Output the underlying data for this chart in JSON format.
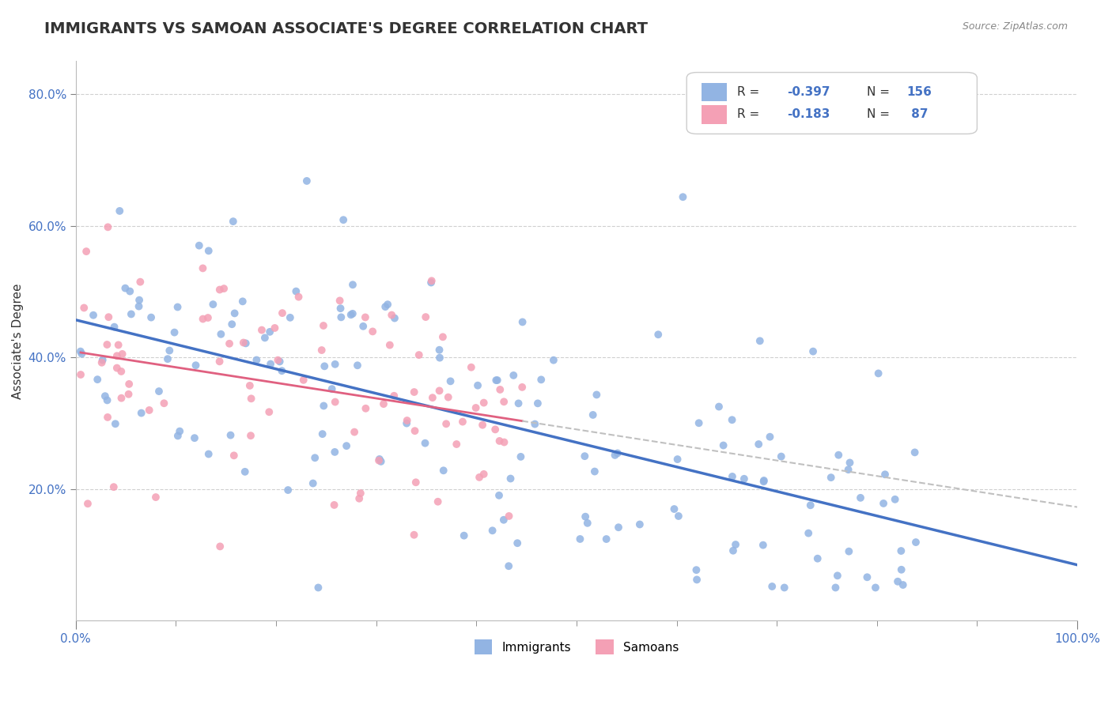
{
  "title": "IMMIGRANTS VS SAMOAN ASSOCIATE'S DEGREE CORRELATION CHART",
  "source_text": "Source: ZipAtlas.com",
  "xlabel": "",
  "ylabel": "Associate's Degree",
  "xlim": [
    0.0,
    1.0
  ],
  "ylim": [
    0.0,
    0.85
  ],
  "x_tick_labels": [
    "0.0%",
    "100.0%"
  ],
  "y_tick_labels": [
    "20.0%",
    "40.0%",
    "60.0%",
    "80.0%"
  ],
  "legend_r1": "R = -0.397",
  "legend_n1": "N = 156",
  "legend_r2": "R = -0.183",
  "legend_n2": "N =  87",
  "immigrant_color": "#92b4e3",
  "samoan_color": "#f4a0b5",
  "immigrant_line_color": "#4472c4",
  "samoan_line_color": "#e06080",
  "samoan_line_dash_color": "#c0c0c0",
  "background_color": "#ffffff",
  "grid_color": "#d0d0d0",
  "R_immigrants": -0.397,
  "N_immigrants": 156,
  "R_samoans": -0.183,
  "N_samoans": 87,
  "title_fontsize": 14,
  "label_fontsize": 11,
  "tick_fontsize": 11
}
